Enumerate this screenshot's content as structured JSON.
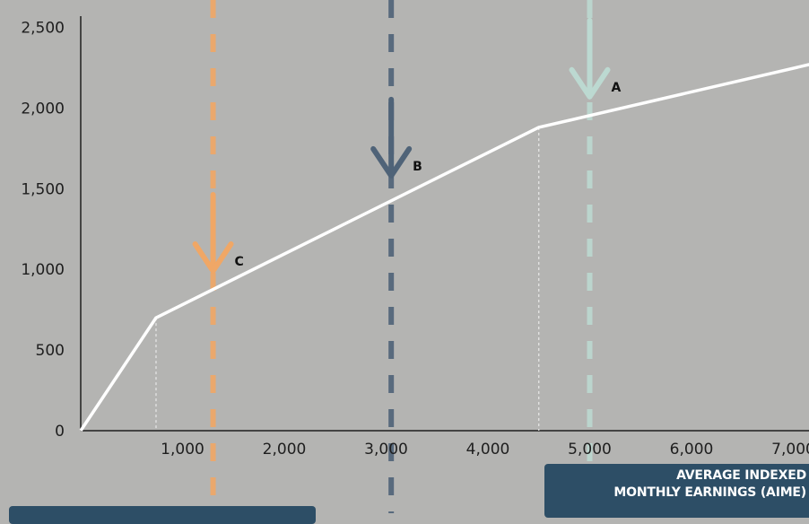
{
  "chart_data": {
    "type": "line",
    "xlabel_line1": "AVERAGE INDEXED",
    "xlabel_line2": "MONTHLY EARNINGS (AIME)",
    "x_ticks": [
      1000,
      2000,
      3000,
      4000,
      5000,
      6000,
      7000
    ],
    "x_tick_labels": [
      "1,000",
      "2,000",
      "3,000",
      "4,000",
      "5,000",
      "6,000",
      "7,000"
    ],
    "y_ticks": [
      0,
      500,
      1000,
      1500,
      2000,
      2500
    ],
    "y_tick_labels": [
      "0",
      "500",
      "1,000",
      "1,500",
      "2,000",
      "2,500"
    ],
    "xlim": [
      0,
      7500
    ],
    "ylim": [
      0,
      2500
    ],
    "line_color": "#ffffff",
    "series": [
      {
        "x": [
          0,
          740,
          4500,
          7500
        ],
        "y": [
          0,
          700,
          1880,
          2320
        ]
      }
    ],
    "bend_points": [
      {
        "x": 740,
        "y": 700
      },
      {
        "x": 4500,
        "y": 1880
      }
    ],
    "markers": [
      {
        "label": "C",
        "x": 1300,
        "y_arrow_tip": 990,
        "color": "#f0a766"
      },
      {
        "label": "B",
        "x": 3050,
        "y_arrow_tip": 1580,
        "color": "#4f6378"
      },
      {
        "label": "A",
        "x": 5000,
        "y_arrow_tip": 2070,
        "color": "#bcd9d1"
      }
    ]
  }
}
